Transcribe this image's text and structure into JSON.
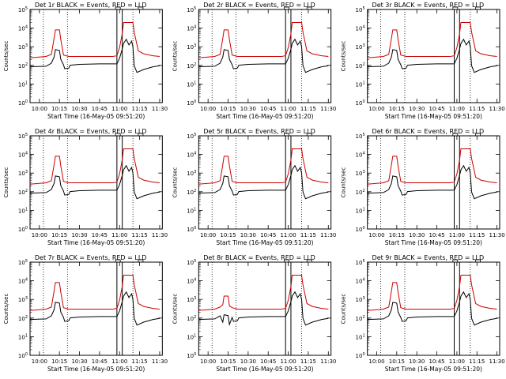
{
  "chart_data": [
    {
      "type": "line",
      "title": "Det 1r BLACK = Events, RED = LLD",
      "xlabel": "Start Time (16-May-05 09:51:20)",
      "ylabel": "Counts/sec",
      "x_ticks": [
        "10:00",
        "10:15",
        "10:30",
        "10:45",
        "11:00",
        "11:15",
        "11:30"
      ],
      "y_ticks": [
        "10^0",
        "10^1",
        "10^2",
        "10^3",
        "10^4",
        "10^5"
      ],
      "y_scale": "log",
      "ylim": [
        1,
        100000
      ],
      "series": [
        {
          "name": "Events",
          "color": "#000000",
          "baseline": 120,
          "peak1": 700,
          "peak2": 2500
        },
        {
          "name": "LLD",
          "color": "#cc0000",
          "baseline": 300,
          "peak1": 8000,
          "peak2": 20000
        }
      ],
      "markers": {
        "dotted_at": [
          "10:03",
          "10:21",
          "11:10"
        ],
        "solid_at": [
          "10:58",
          "11:02"
        ]
      }
    },
    {
      "type": "line",
      "title": "Det 2r BLACK = Events, RED = LLD",
      "xlabel": "Start Time (16-May-05 09:51:20)",
      "ylabel": "Counts/sec",
      "x_ticks": [
        "10:00",
        "10:15",
        "10:30",
        "10:45",
        "11:00",
        "11:15",
        "11:30"
      ],
      "y_ticks": [
        "10^0",
        "10^1",
        "10^2",
        "10^3",
        "10^4",
        "10^5"
      ],
      "y_scale": "log",
      "ylim": [
        1,
        100000
      ],
      "series": [
        {
          "name": "Events",
          "color": "#000000",
          "baseline": 120,
          "peak1": 700,
          "peak2": 2500
        },
        {
          "name": "LLD",
          "color": "#cc0000",
          "baseline": 300,
          "peak1": 8000,
          "peak2": 20000
        }
      ],
      "markers": {
        "dotted_at": [
          "10:03",
          "10:21",
          "11:10"
        ],
        "solid_at": [
          "10:58",
          "11:02"
        ]
      }
    },
    {
      "type": "line",
      "title": "Det 3r BLACK = Events, RED = LLD",
      "xlabel": "Start Time (16-May-05 09:51:20)",
      "ylabel": "Counts/sec",
      "x_ticks": [
        "10:00",
        "10:15",
        "10:30",
        "10:45",
        "11:00",
        "11:15",
        "11:30"
      ],
      "y_ticks": [
        "10^0",
        "10^1",
        "10^2",
        "10^3",
        "10^4",
        "10^5"
      ],
      "y_scale": "log",
      "ylim": [
        1,
        100000
      ],
      "series": [
        {
          "name": "Events",
          "color": "#000000",
          "baseline": 120,
          "peak1": 700,
          "peak2": 2500
        },
        {
          "name": "LLD",
          "color": "#cc0000",
          "baseline": 300,
          "peak1": 8000,
          "peak2": 20000
        }
      ],
      "markers": {
        "dotted_at": [
          "10:03",
          "10:21",
          "11:10"
        ],
        "solid_at": [
          "10:58",
          "11:02"
        ]
      }
    },
    {
      "type": "line",
      "title": "Det 4r BLACK = Events, RED = LLD",
      "xlabel": "Start Time (16-May-05 09:51:20)",
      "ylabel": "Counts/sec",
      "x_ticks": [
        "10:00",
        "10:15",
        "10:30",
        "10:45",
        "11:00",
        "11:15",
        "11:30"
      ],
      "y_ticks": [
        "10^0",
        "10^1",
        "10^2",
        "10^3",
        "10^4",
        "10^5"
      ],
      "y_scale": "log",
      "ylim": [
        1,
        100000
      ],
      "series": [
        {
          "name": "Events",
          "color": "#000000",
          "baseline": 120,
          "peak1": 700,
          "peak2": 2500
        },
        {
          "name": "LLD",
          "color": "#cc0000",
          "baseline": 300,
          "peak1": 8000,
          "peak2": 20000
        }
      ],
      "markers": {
        "dotted_at": [
          "10:03",
          "10:21",
          "11:10"
        ],
        "solid_at": [
          "10:58",
          "11:02"
        ]
      }
    },
    {
      "type": "line",
      "title": "Det 5r BLACK = Events, RED = LLD",
      "xlabel": "Start Time (16-May-05 09:51:20)",
      "ylabel": "Counts/sec",
      "x_ticks": [
        "10:00",
        "10:15",
        "10:30",
        "10:45",
        "11:00",
        "11:15",
        "11:30"
      ],
      "y_ticks": [
        "10^0",
        "10^1",
        "10^2",
        "10^3",
        "10^4",
        "10^5"
      ],
      "y_scale": "log",
      "ylim": [
        1,
        100000
      ],
      "series": [
        {
          "name": "Events",
          "color": "#000000",
          "baseline": 120,
          "peak1": 700,
          "peak2": 2500
        },
        {
          "name": "LLD",
          "color": "#cc0000",
          "baseline": 300,
          "peak1": 8000,
          "peak2": 20000
        }
      ],
      "markers": {
        "dotted_at": [
          "10:03",
          "10:21",
          "11:10"
        ],
        "solid_at": [
          "10:58",
          "11:02"
        ]
      }
    },
    {
      "type": "line",
      "title": "Det 6r BLACK = Events, RED = LLD",
      "xlabel": "Start Time (16-May-05 09:51:20)",
      "ylabel": "Counts/sec",
      "x_ticks": [
        "10:00",
        "10:15",
        "10:30",
        "10:45",
        "11:00",
        "11:15",
        "11:30"
      ],
      "y_ticks": [
        "10^0",
        "10^1",
        "10^2",
        "10^3",
        "10^4",
        "10^5"
      ],
      "y_scale": "log",
      "ylim": [
        1,
        100000
      ],
      "series": [
        {
          "name": "Events",
          "color": "#000000",
          "baseline": 120,
          "peak1": 700,
          "peak2": 2500
        },
        {
          "name": "LLD",
          "color": "#cc0000",
          "baseline": 300,
          "peak1": 8000,
          "peak2": 20000
        }
      ],
      "markers": {
        "dotted_at": [
          "10:03",
          "10:21",
          "11:10"
        ],
        "solid_at": [
          "10:58",
          "11:02"
        ]
      }
    },
    {
      "type": "line",
      "title": "Det 7r BLACK = Events, RED = LLD",
      "xlabel": "Start Time (16-May-05 09:51:20)",
      "ylabel": "Counts/sec",
      "x_ticks": [
        "10:00",
        "10:15",
        "10:30",
        "10:45",
        "11:00",
        "11:15",
        "11:30"
      ],
      "y_ticks": [
        "10^0",
        "10^1",
        "10^2",
        "10^3",
        "10^4",
        "10^5"
      ],
      "y_scale": "log",
      "ylim": [
        1,
        100000
      ],
      "series": [
        {
          "name": "Events",
          "color": "#000000",
          "baseline": 120,
          "peak1": 700,
          "peak2": 2500
        },
        {
          "name": "LLD",
          "color": "#cc0000",
          "baseline": 300,
          "peak1": 8000,
          "peak2": 20000
        }
      ],
      "markers": {
        "dotted_at": [
          "10:03",
          "10:21",
          "11:10"
        ],
        "solid_at": [
          "10:58",
          "11:02"
        ]
      }
    },
    {
      "type": "line",
      "title": "Det 8r BLACK = Events, RED = LLD",
      "xlabel": "Start Time (16-May-05 09:51:20)",
      "ylabel": "Counts/sec",
      "x_ticks": [
        "10:00",
        "10:15",
        "10:30",
        "10:45",
        "11:00",
        "11:15",
        "11:30"
      ],
      "y_ticks": [
        "10^0",
        "10^1",
        "10^2",
        "10^3",
        "10^4",
        "10^5"
      ],
      "y_scale": "log",
      "ylim": [
        1,
        100000
      ],
      "series": [
        {
          "name": "Events",
          "color": "#000000",
          "baseline": 120,
          "peak1": 150,
          "peak2": 2500
        },
        {
          "name": "LLD",
          "color": "#cc0000",
          "baseline": 300,
          "peak1": 1500,
          "peak2": 20000
        }
      ],
      "markers": {
        "dotted_at": [
          "10:03",
          "10:21",
          "11:10"
        ],
        "solid_at": [
          "10:58",
          "11:02"
        ]
      }
    },
    {
      "type": "line",
      "title": "Det 9r BLACK = Events, RED = LLD",
      "xlabel": "Start Time (16-May-05 09:51:20)",
      "ylabel": "Counts/sec",
      "x_ticks": [
        "10:00",
        "10:15",
        "10:30",
        "10:45",
        "11:00",
        "11:15",
        "11:30"
      ],
      "y_ticks": [
        "10^0",
        "10^1",
        "10^2",
        "10^3",
        "10^4",
        "10^5"
      ],
      "y_scale": "log",
      "ylim": [
        1,
        100000
      ],
      "series": [
        {
          "name": "Events",
          "color": "#000000",
          "baseline": 120,
          "peak1": 700,
          "peak2": 2500
        },
        {
          "name": "LLD",
          "color": "#cc0000",
          "baseline": 300,
          "peak1": 8000,
          "peak2": 20000
        }
      ],
      "markers": {
        "dotted_at": [
          "10:03",
          "10:21",
          "11:10"
        ],
        "solid_at": [
          "10:58",
          "11:02"
        ]
      }
    }
  ]
}
